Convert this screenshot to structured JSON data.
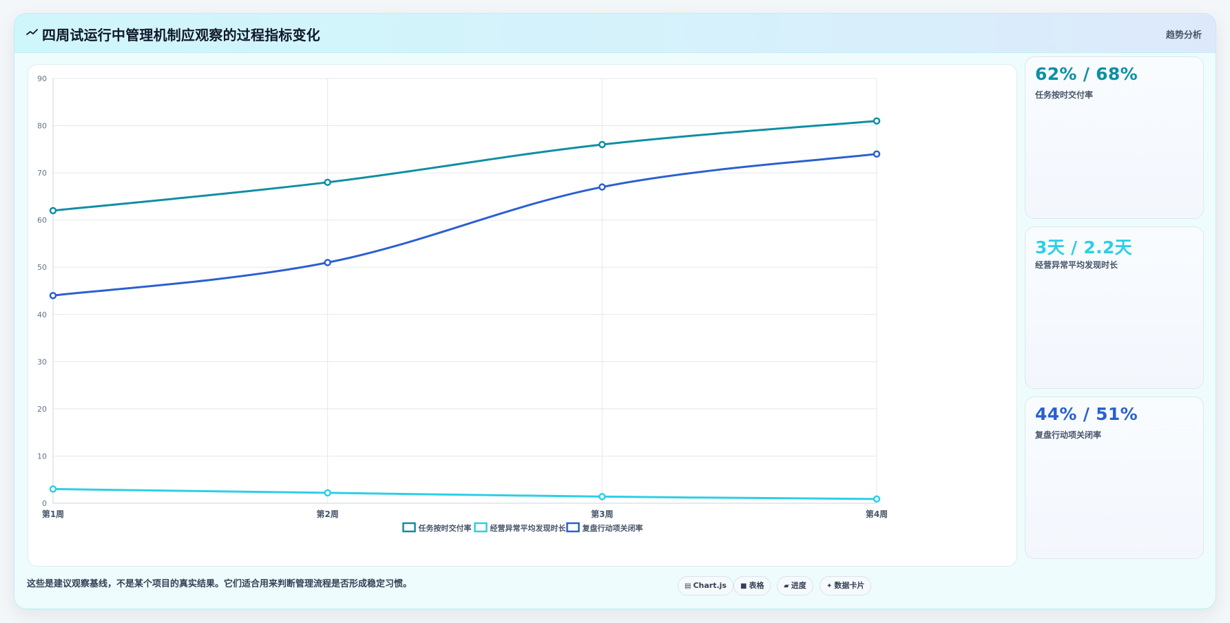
{
  "header": {
    "icon": "trend-line-icon",
    "title": "四周试运行中管理机制应观察的过程指标变化",
    "tag": "趋势分析"
  },
  "chart_data": {
    "type": "line",
    "categories": [
      "第1周",
      "第2周",
      "第3周",
      "第4周"
    ],
    "ylim": [
      0,
      90
    ],
    "yticks": [
      0,
      10,
      20,
      30,
      40,
      50,
      60,
      70,
      80,
      90
    ],
    "grid": true,
    "legend_position": "bottom",
    "series": [
      {
        "name": "任务按时交付率",
        "values": [
          62,
          68,
          76,
          81
        ],
        "color": "#0e8ea3"
      },
      {
        "name": "经营异常平均发现时长",
        "values": [
          3,
          2.2,
          1.4,
          0.9
        ],
        "color": "#2ccfe6"
      },
      {
        "name": "复盘行动项关闭率",
        "values": [
          44,
          51,
          67,
          74
        ],
        "color": "#2b5fd0"
      }
    ]
  },
  "side_cards": [
    {
      "value": "62% / 68%",
      "label": "任务按时交付率",
      "color": "#0e8ea3"
    },
    {
      "value": "3天 / 2.2天",
      "label": "经营异常平均发现时长",
      "color": "#2ccfe6"
    },
    {
      "value": "44% / 51%",
      "label": "复盘行动项关闭率",
      "color": "#2b5fd0"
    }
  ],
  "footnote": "这些是建议观察基线，不是某个项目的真实结果。它们适合用来判断管理流程是否形成稳定习惯。",
  "chips": [
    {
      "icon": "chart-icon",
      "glyph": "▤",
      "label": "Chart.js"
    },
    {
      "icon": "table-icon",
      "glyph": "■",
      "label": "表格"
    },
    {
      "icon": "progress-icon",
      "glyph": "▰",
      "label": "进度"
    },
    {
      "icon": "sparkle-icon",
      "glyph": "✦",
      "label": "数据卡片"
    }
  ]
}
